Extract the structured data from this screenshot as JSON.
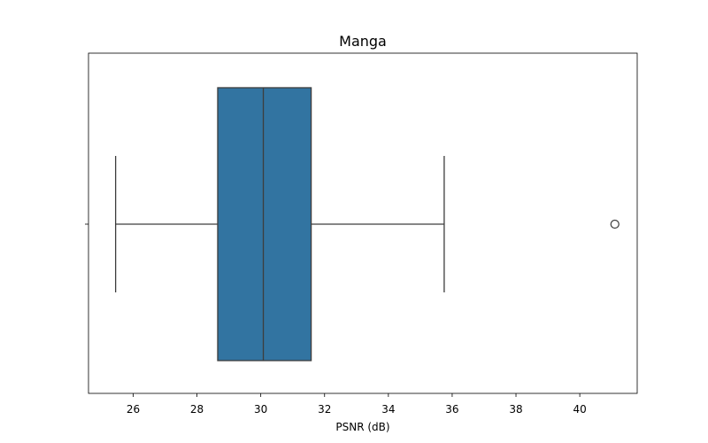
{
  "chart_data": {
    "type": "box",
    "title": "Manga",
    "xlabel": "PSNR (dB)",
    "ylabel": "",
    "orientation": "horizontal",
    "xlim": [
      24.6,
      41.8
    ],
    "xticks": [
      26,
      28,
      30,
      32,
      34,
      36,
      38,
      40
    ],
    "box": {
      "whisker_low": 25.45,
      "q1": 28.65,
      "median": 30.08,
      "q3": 31.58,
      "whisker_high": 35.75
    },
    "outliers": [
      41.1
    ],
    "grid": false,
    "colors": {
      "box_fill": "#3274a1",
      "line": "#3d3d3d",
      "outlier_stroke": "#3d3d3d"
    }
  }
}
